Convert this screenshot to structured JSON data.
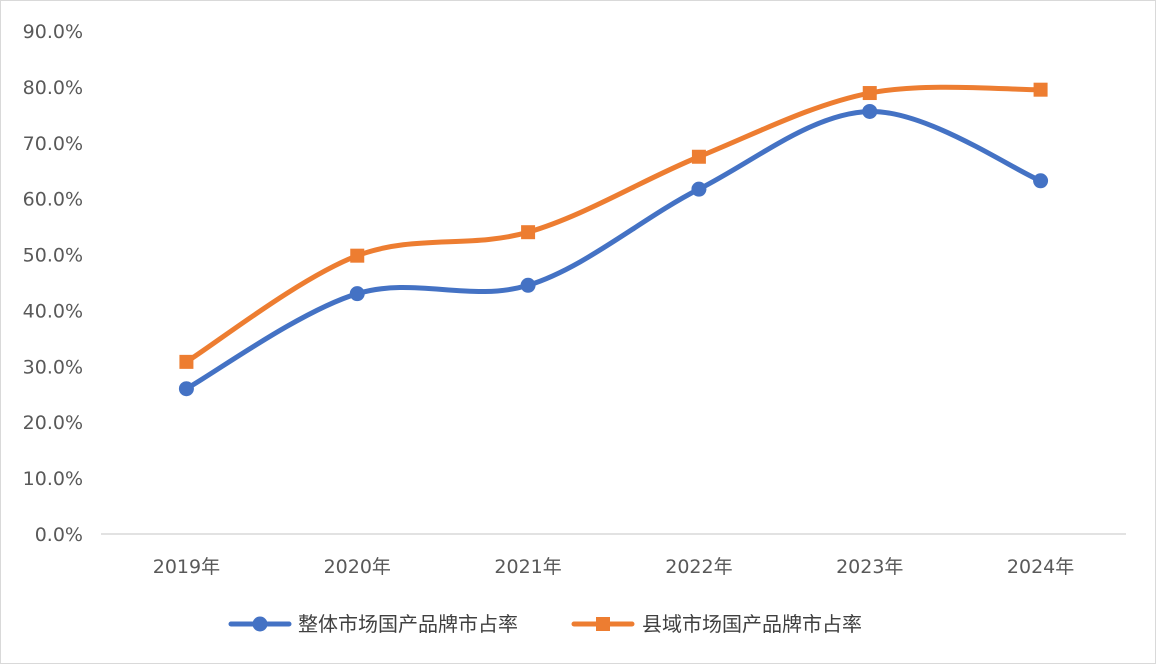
{
  "chart_data": {
    "type": "line",
    "categories": [
      "2019年",
      "2020年",
      "2021年",
      "2022年",
      "2023年",
      "2024年"
    ],
    "series": [
      {
        "name": "整体市场国产品牌市占率",
        "values": [
          26.0,
          43.0,
          44.5,
          61.7,
          75.6,
          63.2
        ],
        "color": "#4472C4",
        "marker": "circle"
      },
      {
        "name": "县域市场国产品牌市占率",
        "values": [
          30.8,
          49.8,
          54.0,
          67.5,
          78.9,
          79.5
        ],
        "color": "#ED7D31",
        "marker": "square"
      }
    ],
    "ylim": [
      0,
      90
    ],
    "yticks": [
      "0.0%",
      "10.0%",
      "20.0%",
      "30.0%",
      "40.0%",
      "50.0%",
      "60.0%",
      "70.0%",
      "80.0%",
      "90.0%"
    ],
    "smooth": true,
    "grid": false,
    "legend": "bottom"
  }
}
